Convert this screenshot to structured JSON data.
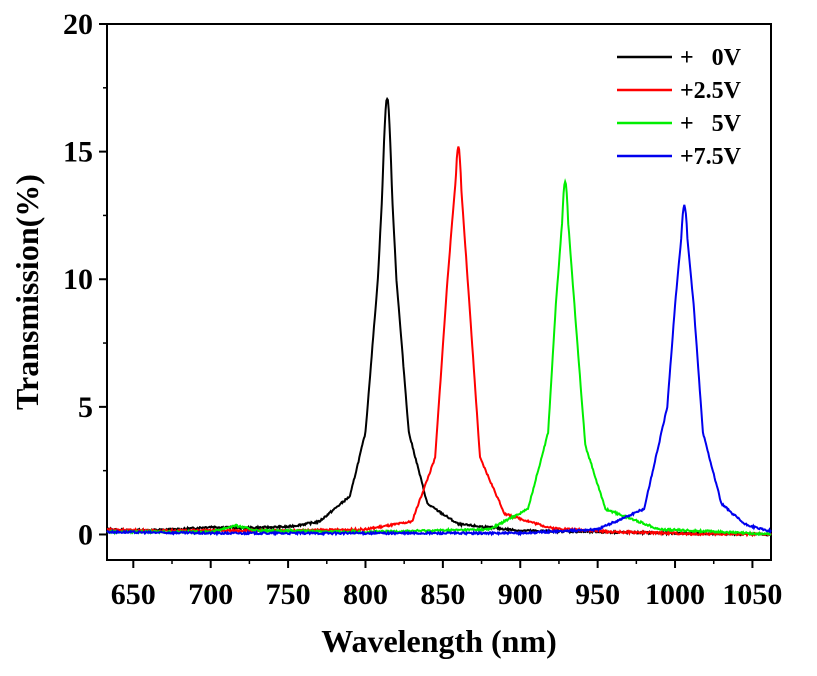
{
  "chart_data": {
    "type": "line",
    "title": "",
    "xlabel": "Wavelength (nm)",
    "ylabel": "Transmission(%)",
    "xlim": [
      633,
      1062
    ],
    "ylim": [
      -1,
      20
    ],
    "x_ticks": [
      650,
      700,
      750,
      800,
      850,
      900,
      950,
      1000,
      1050
    ],
    "y_ticks": [
      0,
      5,
      10,
      15,
      20
    ],
    "grid": false,
    "legend_position": "top-right",
    "series": [
      {
        "name": "+   0V",
        "color": "#000000",
        "peak_x": 814,
        "peak_y": 17.1,
        "width": 12,
        "points": [
          [
            633,
            0.2
          ],
          [
            650,
            0.15
          ],
          [
            680,
            0.2
          ],
          [
            700,
            0.3
          ],
          [
            720,
            0.25
          ],
          [
            750,
            0.3
          ],
          [
            770,
            0.5
          ],
          [
            790,
            1.5
          ],
          [
            800,
            4
          ],
          [
            808,
            10
          ],
          [
            814,
            17.1
          ],
          [
            820,
            10
          ],
          [
            828,
            4
          ],
          [
            840,
            1.2
          ],
          [
            860,
            0.4
          ],
          [
            900,
            0.15
          ],
          [
            950,
            0.1
          ],
          [
            1000,
            0.05
          ],
          [
            1062,
            0.0
          ]
        ]
      },
      {
        "name": "+2.5V",
        "color": "#ff0000",
        "peak_x": 860,
        "peak_y": 15.2,
        "width": 11,
        "points": [
          [
            633,
            0.2
          ],
          [
            660,
            0.15
          ],
          [
            700,
            0.15
          ],
          [
            750,
            0.15
          ],
          [
            800,
            0.2
          ],
          [
            830,
            0.5
          ],
          [
            845,
            3
          ],
          [
            853,
            10
          ],
          [
            860,
            15.2
          ],
          [
            866,
            10
          ],
          [
            874,
            3
          ],
          [
            890,
            0.8
          ],
          [
            920,
            0.25
          ],
          [
            960,
            0.1
          ],
          [
            1000,
            0.05
          ],
          [
            1062,
            -0.2
          ]
        ]
      },
      {
        "name": "+   5V",
        "color": "#00ee00",
        "peak_x": 929,
        "peak_y": 13.8,
        "width": 11,
        "points": [
          [
            633,
            0.1
          ],
          [
            700,
            0.1
          ],
          [
            716,
            0.35
          ],
          [
            730,
            0.15
          ],
          [
            800,
            0.1
          ],
          [
            880,
            0.2
          ],
          [
            905,
            1
          ],
          [
            918,
            4
          ],
          [
            923,
            9
          ],
          [
            929,
            13.8
          ],
          [
            935,
            9
          ],
          [
            942,
            3.5
          ],
          [
            955,
            1
          ],
          [
            990,
            0.2
          ],
          [
            1030,
            0.1
          ],
          [
            1062,
            0.0
          ]
        ]
      },
      {
        "name": "+7.5V",
        "color": "#0000ee",
        "peak_x": 1006,
        "peak_y": 12.9,
        "width": 12,
        "points": [
          [
            633,
            0.1
          ],
          [
            700,
            0.05
          ],
          [
            800,
            0.05
          ],
          [
            900,
            0.05
          ],
          [
            950,
            0.2
          ],
          [
            980,
            1
          ],
          [
            995,
            5
          ],
          [
            1000,
            9
          ],
          [
            1006,
            12.9
          ],
          [
            1012,
            9
          ],
          [
            1018,
            4
          ],
          [
            1030,
            1.2
          ],
          [
            1045,
            0.4
          ],
          [
            1062,
            0.1
          ]
        ]
      }
    ]
  }
}
